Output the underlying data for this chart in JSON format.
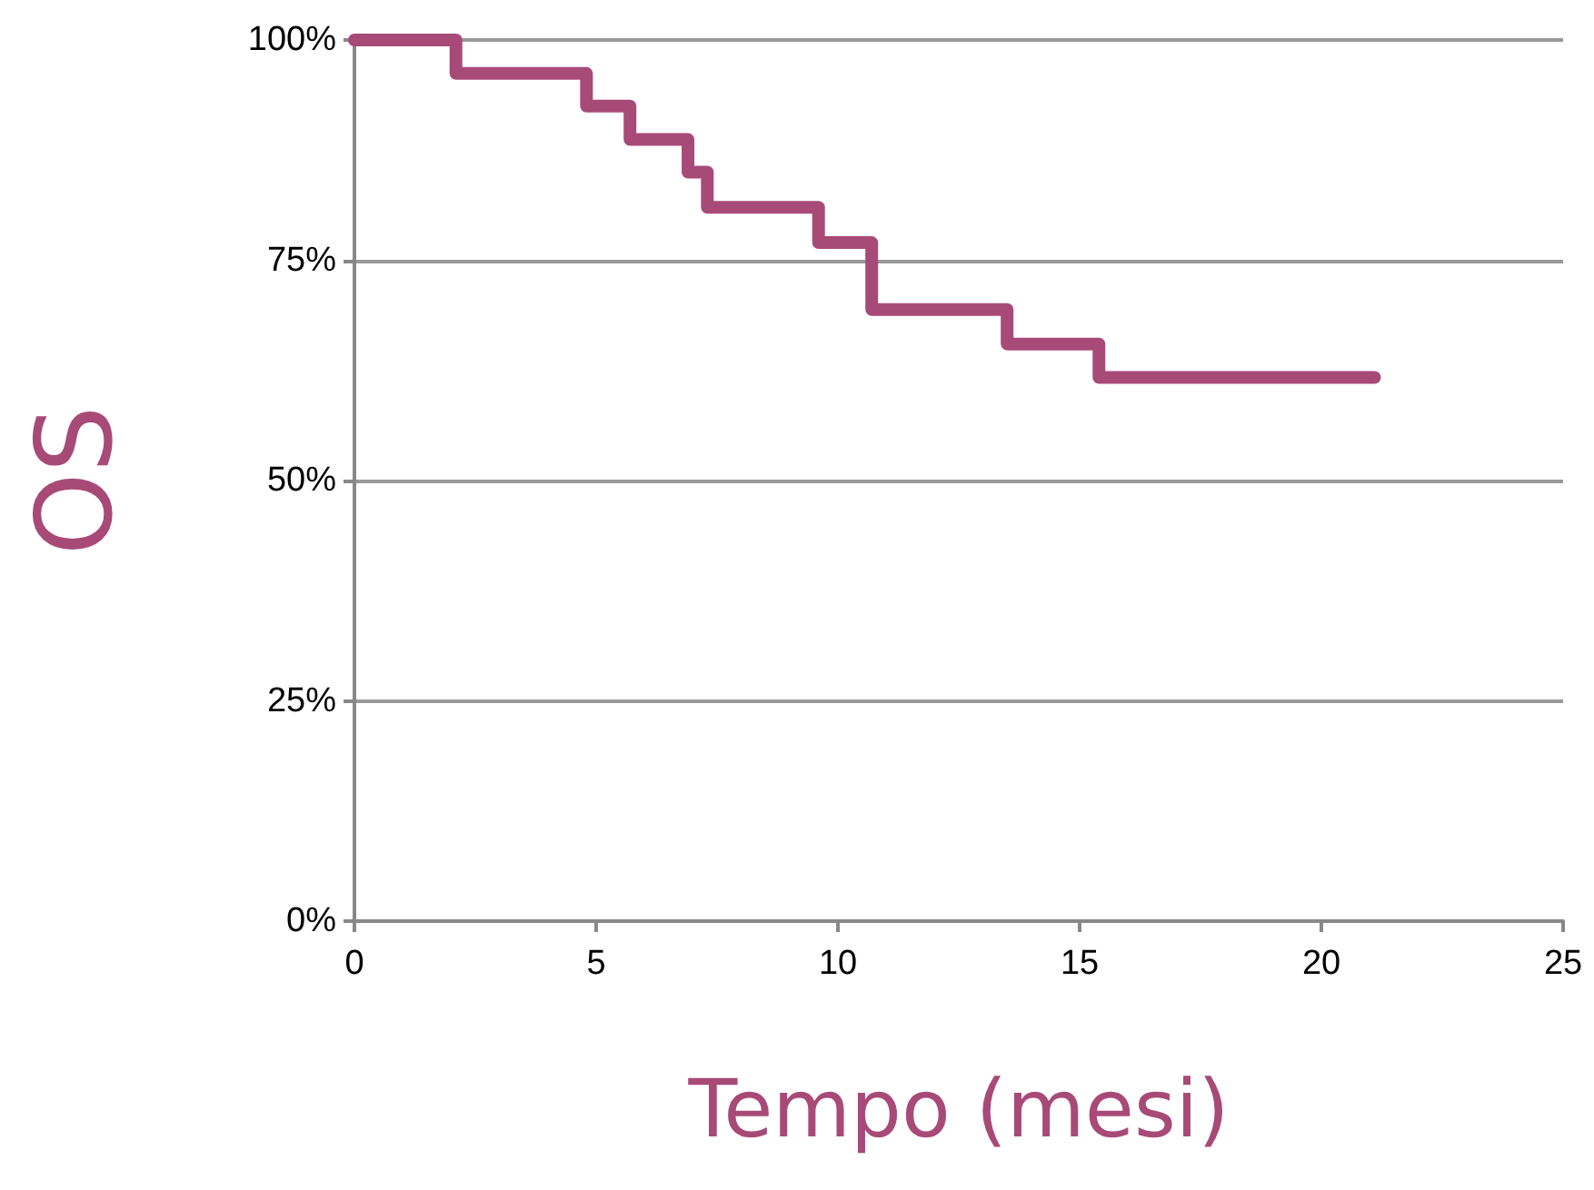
{
  "chart_data": {
    "type": "step",
    "xlabel": "Tempo (mesi)",
    "ylabel": "OS",
    "x": [
      0,
      2.1,
      4.8,
      5.7,
      6.9,
      7.3,
      9.6,
      10.7,
      13.5,
      15.4,
      21.1
    ],
    "series": [
      {
        "color": "#a84a78",
        "values": [
          100,
          96.2,
          92.5,
          88.7,
          85,
          81,
          77,
          69.4,
          65.5,
          61.7,
          61.7
        ]
      }
    ],
    "xlim": [
      0,
      25
    ],
    "xticks": [
      0,
      5,
      10,
      15,
      20,
      25
    ],
    "ylim": [
      0,
      100
    ],
    "yticks": [
      {
        "value": 0,
        "label": "0%"
      },
      {
        "value": 25,
        "label": "25%"
      },
      {
        "value": 50,
        "label": "50%"
      },
      {
        "value": 75,
        "label": "75%"
      },
      {
        "value": 100,
        "label": "100%"
      }
    ],
    "grid": "y",
    "line_style": "solid"
  }
}
